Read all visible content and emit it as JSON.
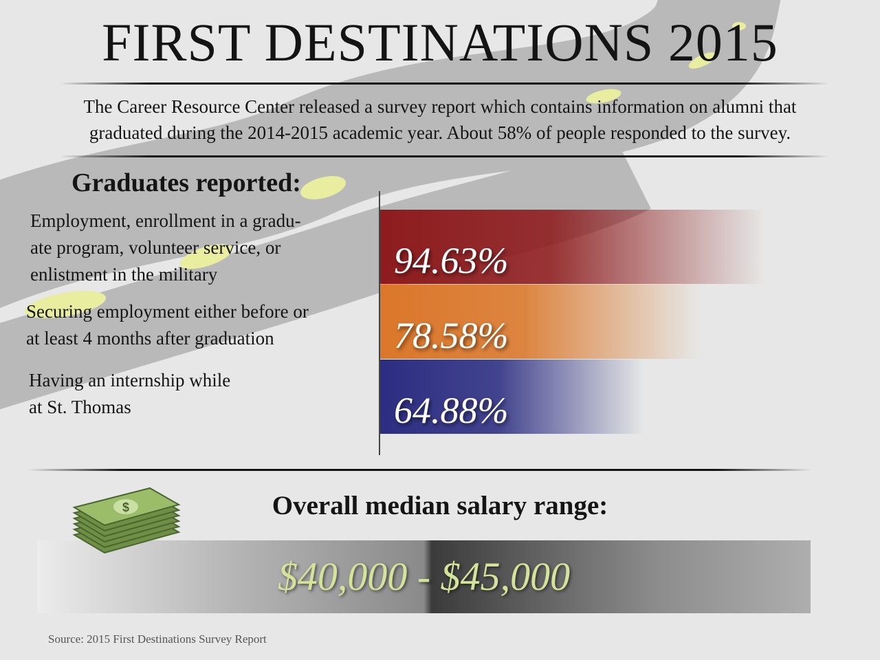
{
  "title": "FIRST DESTINATIONS 2015",
  "intro": {
    "line1": "The Career Resource Center released a survey report which contains information on alumni that",
    "line2": "graduated during the 2014-2015 academic year. About 58% of people responded to the survey."
  },
  "graduates_heading": "Graduates reported:",
  "labels": [
    [
      "Employment, enrollment in a gradu-",
      "ate program, volunteer service, or",
      "enlistment in the military"
    ],
    [
      "Securing employment either before or",
      "at least 4 months after graduation"
    ],
    [
      "Having an internship while",
      "at St. Thomas"
    ]
  ],
  "chart_data": {
    "type": "bar",
    "orientation": "horizontal",
    "categories": [
      "Employment, enrollment in a graduate program, volunteer service, or enlistment in the military",
      "Securing employment either before or at least 4 months after graduation",
      "Having an internship while at St. Thomas"
    ],
    "values": [
      94.63,
      78.58,
      64.88
    ],
    "value_labels": [
      "94.63%",
      "78.58%",
      "64.88%"
    ],
    "colors": [
      "#8e1c1e",
      "#db772a",
      "#2c2d82"
    ],
    "xlim": [
      0,
      100
    ]
  },
  "salary": {
    "heading": "Overall median salary range:",
    "range": "$40,000 - $45,000"
  },
  "source": "Source: 2015 First Destinations Survey Report",
  "icons": {
    "money": "money-stack-icon"
  }
}
